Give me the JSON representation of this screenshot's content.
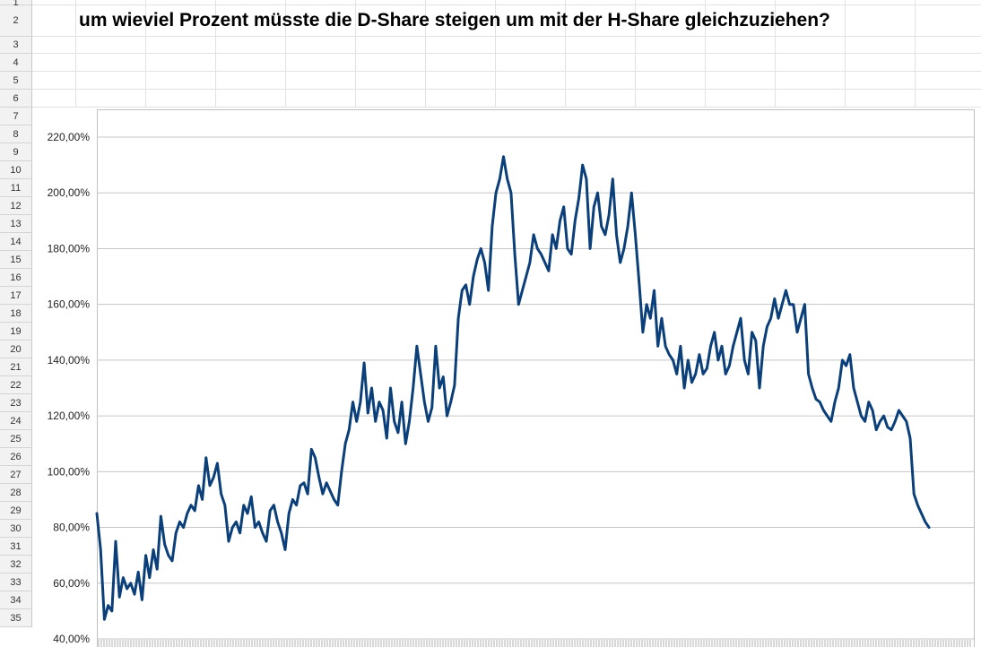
{
  "sheet": {
    "title": "um wieviel Prozent müsste die D-Share steigen um mit der H-Share gleichzuziehen?",
    "row_numbers": [
      "1",
      "2",
      "3",
      "4",
      "5",
      "6",
      "7",
      "8",
      "9",
      "10",
      "11",
      "12",
      "13",
      "14",
      "15",
      "16",
      "17",
      "18",
      "19",
      "20",
      "21",
      "22",
      "23",
      "24",
      "25",
      "26",
      "27",
      "28",
      "29",
      "30",
      "31",
      "32",
      "33",
      "34",
      "35"
    ]
  },
  "chart_data": {
    "type": "line",
    "title": "",
    "xlabel": "",
    "ylabel": "",
    "ylim": [
      40,
      220
    ],
    "y_tick_labels": [
      "40,00%",
      "60,00%",
      "80,00%",
      "100,00%",
      "120,00%",
      "140,00%",
      "160,00%",
      "180,00%",
      "200,00%",
      "220,00%"
    ],
    "y_ticks": [
      40,
      60,
      80,
      100,
      120,
      140,
      160,
      180,
      200,
      220
    ],
    "grid": true,
    "legend": "none",
    "line_color": "#0b3f7a",
    "series": [
      {
        "values": [
          85,
          72,
          47,
          52,
          50,
          75,
          55,
          62,
          58,
          60,
          56,
          64,
          54,
          70,
          62,
          72,
          65,
          84,
          74,
          70,
          68,
          78,
          82,
          80,
          85,
          88,
          86,
          95,
          90,
          105,
          95,
          98,
          103,
          92,
          88,
          75,
          80,
          82,
          78,
          88,
          85,
          91,
          80,
          82,
          78,
          75,
          86,
          88,
          82,
          78,
          72,
          85,
          90,
          88,
          95,
          96,
          92,
          108,
          105,
          98,
          92,
          96,
          93,
          90,
          88,
          100,
          110,
          115,
          125,
          118,
          125,
          139,
          121,
          130,
          118,
          125,
          122,
          112,
          130,
          118,
          114,
          125,
          110,
          118,
          130,
          145,
          135,
          125,
          118,
          123,
          145,
          130,
          134,
          120,
          125,
          131,
          155,
          165,
          167,
          160,
          170,
          176,
          180,
          175,
          165,
          188,
          200,
          205,
          213,
          205,
          200,
          178,
          160,
          165,
          170,
          175,
          185,
          180,
          178,
          175,
          172,
          185,
          180,
          190,
          195,
          180,
          178,
          190,
          198,
          210,
          205,
          180,
          195,
          200,
          188,
          185,
          192,
          205,
          185,
          175,
          180,
          188,
          200,
          185,
          168,
          150,
          160,
          155,
          165,
          145,
          155,
          145,
          142,
          140,
          135,
          145,
          130,
          140,
          132,
          135,
          142,
          135,
          137,
          145,
          150,
          140,
          145,
          135,
          138,
          145,
          150,
          155,
          140,
          135,
          150,
          147,
          130,
          145,
          152,
          155,
          162,
          155,
          160,
          165,
          160,
          160,
          150,
          155,
          160,
          135,
          130,
          126,
          125,
          122,
          120,
          118,
          125,
          130,
          140,
          138,
          142,
          130,
          125,
          120,
          118,
          125,
          122,
          115,
          118,
          120,
          116,
          115,
          118,
          122,
          120,
          118,
          112,
          92,
          88,
          85,
          82,
          80
        ]
      }
    ]
  }
}
